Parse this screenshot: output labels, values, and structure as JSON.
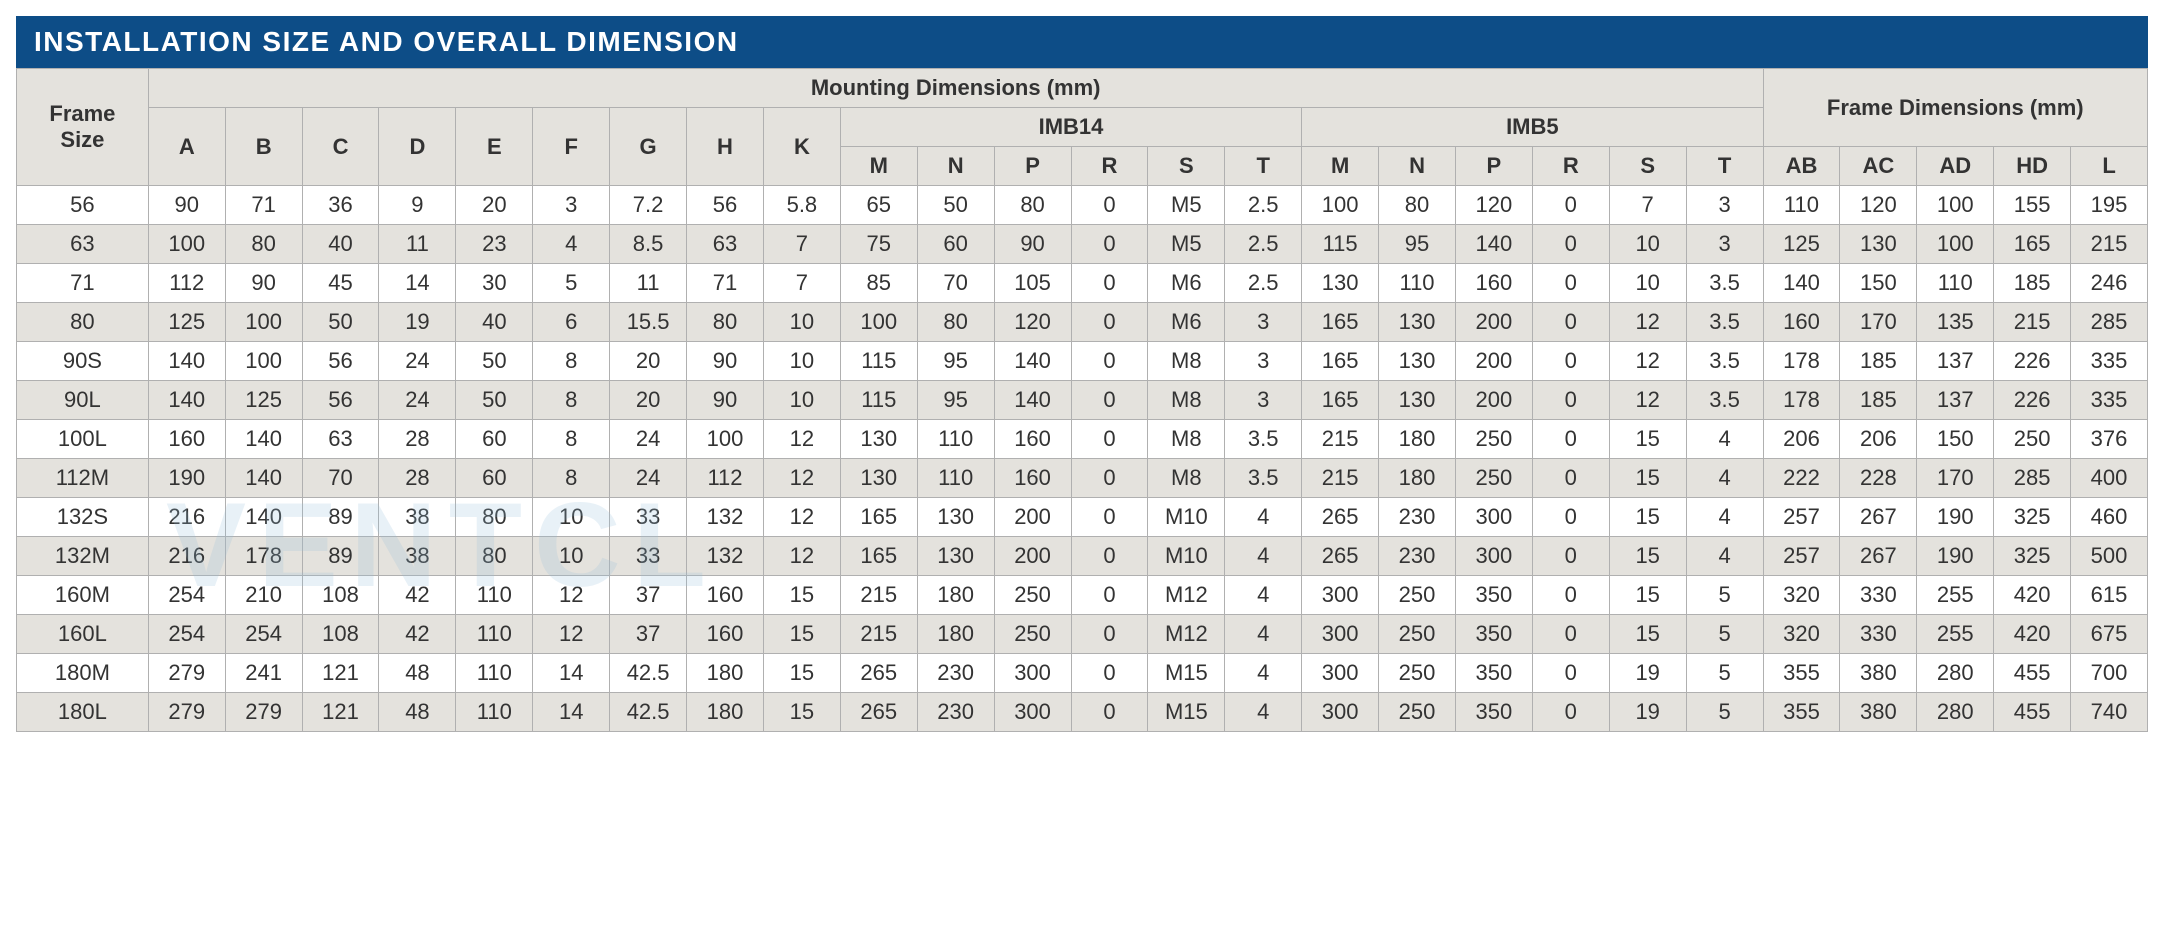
{
  "title": "INSTALLATION SIZE AND OVERALL DIMENSION",
  "headers": {
    "frame_size": "Frame\nSize",
    "mounting": "Mounting Dimensions (mm)",
    "imb14": "IMB14",
    "imb5": "IMB5",
    "frame_dim": "Frame Dimensions (mm)",
    "sub": [
      "A",
      "B",
      "C",
      "D",
      "E",
      "F",
      "G",
      "H",
      "K",
      "M",
      "N",
      "P",
      "R",
      "S",
      "T",
      "M",
      "N",
      "P",
      "R",
      "S",
      "T",
      "AB",
      "AC",
      "AD",
      "HD",
      "L"
    ]
  },
  "rows": [
    {
      "size": "56",
      "v": [
        "90",
        "71",
        "36",
        "9",
        "20",
        "3",
        "7.2",
        "56",
        "5.8",
        "65",
        "50",
        "80",
        "0",
        "M5",
        "2.5",
        "100",
        "80",
        "120",
        "0",
        "7",
        "3",
        "110",
        "120",
        "100",
        "155",
        "195"
      ]
    },
    {
      "size": "63",
      "v": [
        "100",
        "80",
        "40",
        "11",
        "23",
        "4",
        "8.5",
        "63",
        "7",
        "75",
        "60",
        "90",
        "0",
        "M5",
        "2.5",
        "115",
        "95",
        "140",
        "0",
        "10",
        "3",
        "125",
        "130",
        "100",
        "165",
        "215"
      ]
    },
    {
      "size": "71",
      "v": [
        "112",
        "90",
        "45",
        "14",
        "30",
        "5",
        "11",
        "71",
        "7",
        "85",
        "70",
        "105",
        "0",
        "M6",
        "2.5",
        "130",
        "110",
        "160",
        "0",
        "10",
        "3.5",
        "140",
        "150",
        "110",
        "185",
        "246"
      ]
    },
    {
      "size": "80",
      "v": [
        "125",
        "100",
        "50",
        "19",
        "40",
        "6",
        "15.5",
        "80",
        "10",
        "100",
        "80",
        "120",
        "0",
        "M6",
        "3",
        "165",
        "130",
        "200",
        "0",
        "12",
        "3.5",
        "160",
        "170",
        "135",
        "215",
        "285"
      ]
    },
    {
      "size": "90S",
      "v": [
        "140",
        "100",
        "56",
        "24",
        "50",
        "8",
        "20",
        "90",
        "10",
        "115",
        "95",
        "140",
        "0",
        "M8",
        "3",
        "165",
        "130",
        "200",
        "0",
        "12",
        "3.5",
        "178",
        "185",
        "137",
        "226",
        "335"
      ]
    },
    {
      "size": "90L",
      "v": [
        "140",
        "125",
        "56",
        "24",
        "50",
        "8",
        "20",
        "90",
        "10",
        "115",
        "95",
        "140",
        "0",
        "M8",
        "3",
        "165",
        "130",
        "200",
        "0",
        "12",
        "3.5",
        "178",
        "185",
        "137",
        "226",
        "335"
      ]
    },
    {
      "size": "100L",
      "v": [
        "160",
        "140",
        "63",
        "28",
        "60",
        "8",
        "24",
        "100",
        "12",
        "130",
        "110",
        "160",
        "0",
        "M8",
        "3.5",
        "215",
        "180",
        "250",
        "0",
        "15",
        "4",
        "206",
        "206",
        "150",
        "250",
        "376"
      ]
    },
    {
      "size": "112M",
      "v": [
        "190",
        "140",
        "70",
        "28",
        "60",
        "8",
        "24",
        "112",
        "12",
        "130",
        "110",
        "160",
        "0",
        "M8",
        "3.5",
        "215",
        "180",
        "250",
        "0",
        "15",
        "4",
        "222",
        "228",
        "170",
        "285",
        "400"
      ]
    },
    {
      "size": "132S",
      "v": [
        "216",
        "140",
        "89",
        "38",
        "80",
        "10",
        "33",
        "132",
        "12",
        "165",
        "130",
        "200",
        "0",
        "M10",
        "4",
        "265",
        "230",
        "300",
        "0",
        "15",
        "4",
        "257",
        "267",
        "190",
        "325",
        "460"
      ]
    },
    {
      "size": "132M",
      "v": [
        "216",
        "178",
        "89",
        "38",
        "80",
        "10",
        "33",
        "132",
        "12",
        "165",
        "130",
        "200",
        "0",
        "M10",
        "4",
        "265",
        "230",
        "300",
        "0",
        "15",
        "4",
        "257",
        "267",
        "190",
        "325",
        "500"
      ]
    },
    {
      "size": "160M",
      "v": [
        "254",
        "210",
        "108",
        "42",
        "110",
        "12",
        "37",
        "160",
        "15",
        "215",
        "180",
        "250",
        "0",
        "M12",
        "4",
        "300",
        "250",
        "350",
        "0",
        "15",
        "5",
        "320",
        "330",
        "255",
        "420",
        "615"
      ]
    },
    {
      "size": "160L",
      "v": [
        "254",
        "254",
        "108",
        "42",
        "110",
        "12",
        "37",
        "160",
        "15",
        "215",
        "180",
        "250",
        "0",
        "M12",
        "4",
        "300",
        "250",
        "350",
        "0",
        "15",
        "5",
        "320",
        "330",
        "255",
        "420",
        "675"
      ]
    },
    {
      "size": "180M",
      "v": [
        "279",
        "241",
        "121",
        "48",
        "110",
        "14",
        "42.5",
        "180",
        "15",
        "265",
        "230",
        "300",
        "0",
        "M15",
        "4",
        "300",
        "250",
        "350",
        "0",
        "19",
        "5",
        "355",
        "380",
        "280",
        "455",
        "700"
      ]
    },
    {
      "size": "180L",
      "v": [
        "279",
        "279",
        "121",
        "48",
        "110",
        "14",
        "42.5",
        "180",
        "15",
        "265",
        "230",
        "300",
        "0",
        "M15",
        "4",
        "300",
        "250",
        "350",
        "0",
        "19",
        "5",
        "355",
        "380",
        "280",
        "455",
        "740"
      ]
    }
  ],
  "style": {
    "title_bg": "#0d4d87",
    "title_color": "#ffffff",
    "header_bg": "#e4e2dd",
    "row_odd_bg": "#ffffff",
    "row_even_bg": "#e4e2dd",
    "border_color": "#b0b0b0",
    "title_fontsize": 28,
    "cell_fontsize": 22,
    "font_family": "Trebuchet MS"
  },
  "watermark": "VENTCL"
}
